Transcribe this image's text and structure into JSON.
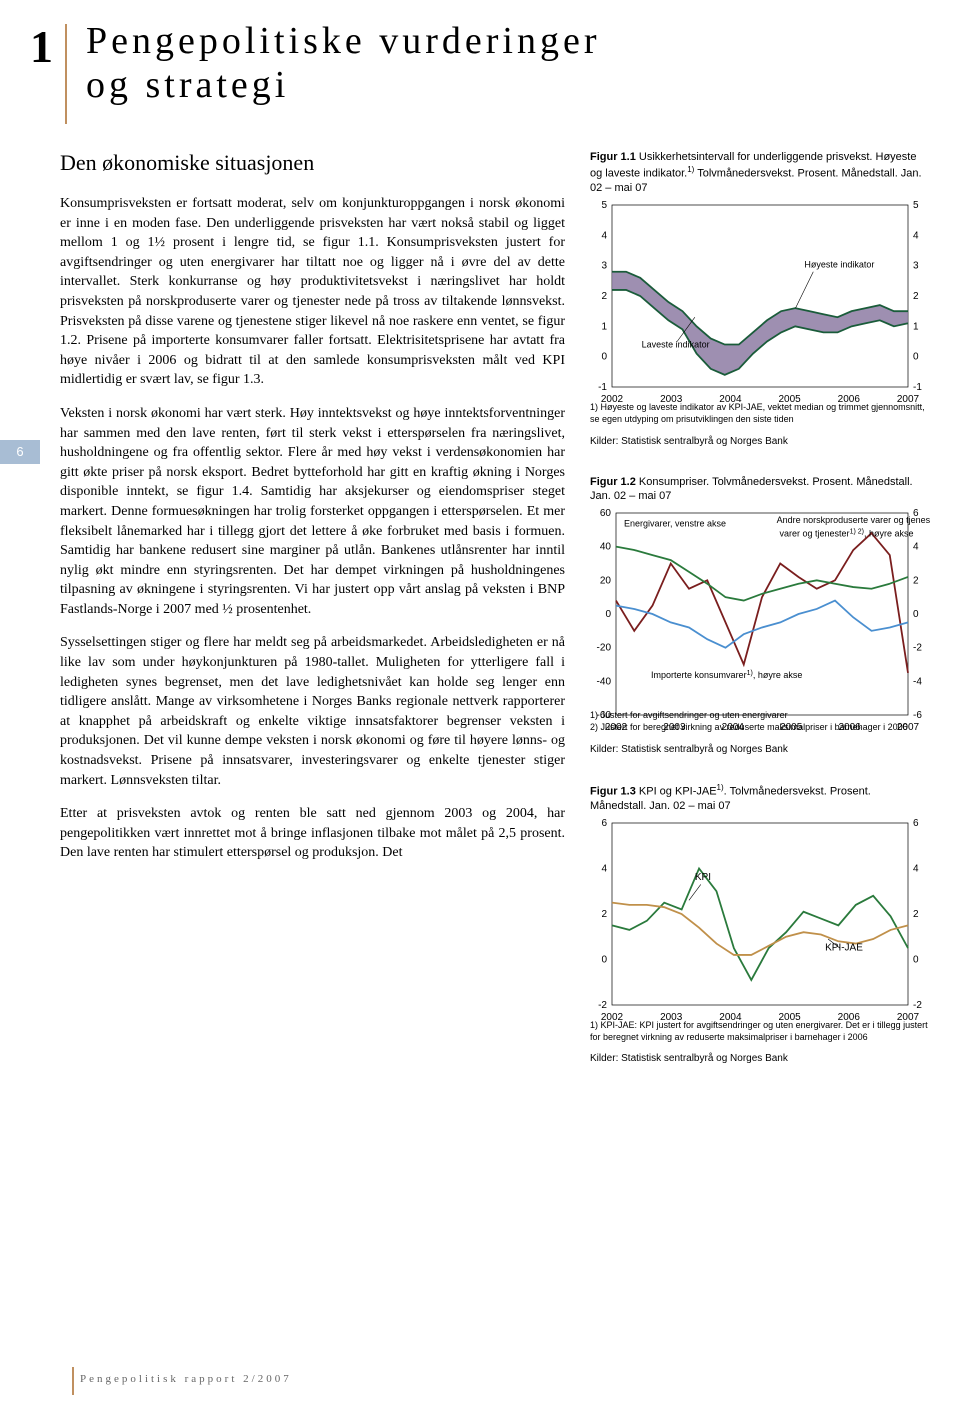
{
  "chapter": {
    "number": "1",
    "title_line1": "Pengepolitiske vurderinger",
    "title_line2": "og strategi"
  },
  "side_page_num": "6",
  "subheading": "Den økonomiske situasjonen",
  "paragraphs": [
    "Konsumprisveksten er fortsatt moderat, selv om konjunkturoppgangen i norsk økonomi er inne i en moden fase. Den underliggende prisveksten har vært nokså stabil og ligget mellom 1 og 1½ prosent i lengre tid, se figur 1.1. Konsumprisveksten justert for avgiftsendringer og uten energivarer har tiltatt noe og ligger nå i øvre del av dette intervallet. Sterk konkurranse og høy produktivitetsvekst i næringslivet har holdt prisveksten på norskproduserte varer og tjenester nede på tross av tiltakende lønnsvekst. Prisveksten på disse varene og tjenestene stiger likevel nå noe raskere enn ventet, se figur 1.2. Prisene på importerte konsumvarer faller fortsatt. Elektrisitetsprisene har avtatt fra høye nivåer i 2006 og bidratt til at den samlede konsumprisveksten målt ved KPI midlertidig er svært lav, se figur 1.3.",
    "Veksten i norsk økonomi har vært sterk. Høy inntektsvekst og høye inntektsforventninger har sammen med den lave renten, ført til sterk vekst i etterspørselen fra næringslivet, husholdningene og fra offentlig sektor. Flere år med høy vekst i verdensøkonomien har gitt økte priser på norsk eksport. Bedret bytteforhold har gitt en kraftig økning i Norges disponible inntekt, se figur 1.4. Samtidig har aksjekurser og eiendomspriser steget markert. Denne formuesøkningen har trolig forsterket oppgangen i etterspørselen. Et mer fleksibelt lånemarked har i tillegg gjort det lettere å øke forbruket med basis i formuen. Samtidig har bankene redusert sine marginer på utlån. Bankenes utlånsrenter har inntil nylig økt mindre enn styringsrenten. Det har dempet virkningen på husholdningenes tilpasning av økningene i styringsrenten. Vi har justert opp vårt anslag på veksten i BNP Fastlands-Norge i 2007 med ½ prosentenhet.",
    "Sysselsettingen stiger og flere har meldt seg på arbeidsmarkedet. Arbeidsledigheten er nå like lav som under høykonjunkturen på 1980-tallet. Muligheten for ytterligere fall i ledigheten synes begrenset, men det lave ledighetsnivået kan holde seg lenger enn tidligere anslått. Mange av virksomhetene i Norges Banks regionale nettverk rapporterer at knapphet på arbeidskraft og enkelte viktige innsatsfaktorer begrenser veksten i produksjonen. Det vil kunne dempe veksten i norsk økonomi og føre til høyere lønns- og kostnadsvekst. Prisene på innsatsvarer, investeringsvarer og enkelte tjenester stiger markert. Lønnsveksten tiltar.",
    "Etter at prisveksten avtok og renten ble satt ned gjennom 2003 og 2004, har pengepolitikken vært innrettet mot å bringe inflasjonen tilbake mot målet på 2,5 prosent. Den lave renten har stimulert etterspørsel og produksjon. Det"
  ],
  "fig1": {
    "title_strong": "Figur 1.1",
    "title_rest": " Usikkerhetsintervall for underliggende prisvekst. Høyeste og laveste indikator.",
    "title_sup": "1)",
    "title_rest2": " Tolvmånedersvekst. Prosent. Månedstall. Jan. 02 – mai 07",
    "chart": {
      "bg_color": "#ffffff",
      "grid_color": "#e0e0e0",
      "text_color": "#000000",
      "left_ticks": [
        "5",
        "4",
        "3",
        "2",
        "1",
        "0",
        "-1"
      ],
      "right_ticks": [
        "5",
        "4",
        "3",
        "2",
        "1",
        "0",
        "-1"
      ],
      "x_labels": [
        "2002",
        "2003",
        "2004",
        "2005",
        "2006",
        "2007"
      ],
      "ymin": -1,
      "ymax": 5,
      "band_color": "#8d7ba3",
      "top_line_color": "#1a5c3a",
      "bottom_line_color": "#1a5c3a",
      "band_top": [
        2.8,
        2.8,
        2.6,
        2.2,
        1.8,
        1.5,
        1.0,
        0.6,
        0.4,
        0.4,
        0.8,
        1.2,
        1.5,
        1.6,
        1.5,
        1.4,
        1.3,
        1.5,
        1.6,
        1.7,
        1.5,
        1.5
      ],
      "band_bottom": [
        2.2,
        2.2,
        2.0,
        1.6,
        1.2,
        0.9,
        0.1,
        -0.4,
        -0.6,
        -0.4,
        0.1,
        0.5,
        0.8,
        1.0,
        0.9,
        0.8,
        0.8,
        1.0,
        1.1,
        1.2,
        1.0,
        1.1
      ],
      "label_top": "Høyeste indikator",
      "label_bottom": "Laveste indikator"
    },
    "footnote": "1) Høyeste og laveste indikator av KPI-JAE, vektet median og trimmet gjennomsnitt, se egen utdyping om prisutviklingen den siste tiden",
    "source": "Kilder: Statistisk sentralbyrå og Norges Bank"
  },
  "fig2": {
    "title_strong": "Figur 1.2",
    "title_rest": "  Konsumpriser. Tolvmånedersvekst. Prosent. Månedstall. Jan. 02 – mai 07",
    "chart": {
      "bg_color": "#ffffff",
      "left_ticks": [
        "60",
        "40",
        "20",
        "0",
        "-20",
        "-40",
        "-60"
      ],
      "right_ticks": [
        "6",
        "4",
        "2",
        "0",
        "-2",
        "-4",
        "-6"
      ],
      "x_labels": [
        "2002",
        "2003",
        "2004",
        "2005",
        "2006",
        "2007"
      ],
      "series": [
        {
          "name": "Energivarer, venstre akse",
          "color": "#7a1e1e",
          "y": [
            8,
            -10,
            5,
            30,
            15,
            20,
            -5,
            -30,
            10,
            30,
            22,
            15,
            20,
            38,
            48,
            35,
            -35
          ]
        },
        {
          "name": "Andre norskproduserte varer og tjenester1) 2), høyre akse",
          "color": "#2a7a3c",
          "y": [
            40,
            38,
            35,
            32,
            25,
            18,
            10,
            8,
            12,
            15,
            18,
            20,
            18,
            16,
            15,
            18,
            22
          ]
        },
        {
          "name": "Importerte konsumvarer1), høyre akse",
          "color": "#4a8fd0",
          "y": [
            5,
            3,
            0,
            -5,
            -8,
            -15,
            -20,
            -12,
            -8,
            -5,
            0,
            3,
            8,
            -2,
            -10,
            -8,
            -5
          ]
        }
      ],
      "label_energi": "Energivarer, venstre akse",
      "label_norsk": "Andre norskproduserte varer og tjenester",
      "label_norsk_sup": "1) 2)",
      "label_norsk2": ", høyre akse",
      "label_import": "Importerte konsumvarer",
      "label_import_sup": "1)",
      "label_import2": ", høyre akse"
    },
    "footnote": "1) Justert for avgiftsendringer og uten energivarer\n2) Justert for beregnet virkning av reduserte maksimalpriser i barnehager i 2006",
    "source": "Kilder: Statistisk sentralbyrå og Norges Bank"
  },
  "fig3": {
    "title_strong": "Figur 1.3",
    "title_rest": " KPI og KPI-JAE",
    "title_sup": "1)",
    "title_rest2": ". Tolvmånedersvekst. Prosent. Månedstall. Jan. 02 – mai 07",
    "chart": {
      "bg_color": "#ffffff",
      "left_ticks": [
        "6",
        "4",
        "2",
        "0",
        "-2"
      ],
      "right_ticks": [
        "6",
        "4",
        "2",
        "0",
        "-2"
      ],
      "x_labels": [
        "2002",
        "2003",
        "2004",
        "2005",
        "2006",
        "2007"
      ],
      "kpi_color": "#2a7a3c",
      "kpijae_color": "#c0904a",
      "kpi": [
        1.5,
        1.3,
        1.7,
        2.5,
        2.2,
        4.0,
        3.0,
        0.5,
        -0.9,
        0.5,
        1.2,
        2.1,
        1.8,
        1.5,
        2.4,
        2.8,
        1.9,
        0.5
      ],
      "kpijae": [
        2.5,
        2.4,
        2.4,
        2.3,
        2.0,
        1.4,
        0.7,
        0.2,
        0.2,
        0.6,
        1.0,
        1.2,
        1.1,
        0.8,
        0.7,
        0.9,
        1.3,
        1.5
      ],
      "label_kpi": "KPI",
      "label_kpijae": "KPI-JAE"
    },
    "footnote": "1) KPI-JAE: KPI justert for avgiftsendringer og uten energivarer. Det er i tillegg justert for beregnet virkning av reduserte maksimalpriser i barnehager i 2006",
    "source": "Kilder: Statistisk sentralbyrå og Norges Bank"
  },
  "footer": "Pengepolitisk rapport 2/2007"
}
